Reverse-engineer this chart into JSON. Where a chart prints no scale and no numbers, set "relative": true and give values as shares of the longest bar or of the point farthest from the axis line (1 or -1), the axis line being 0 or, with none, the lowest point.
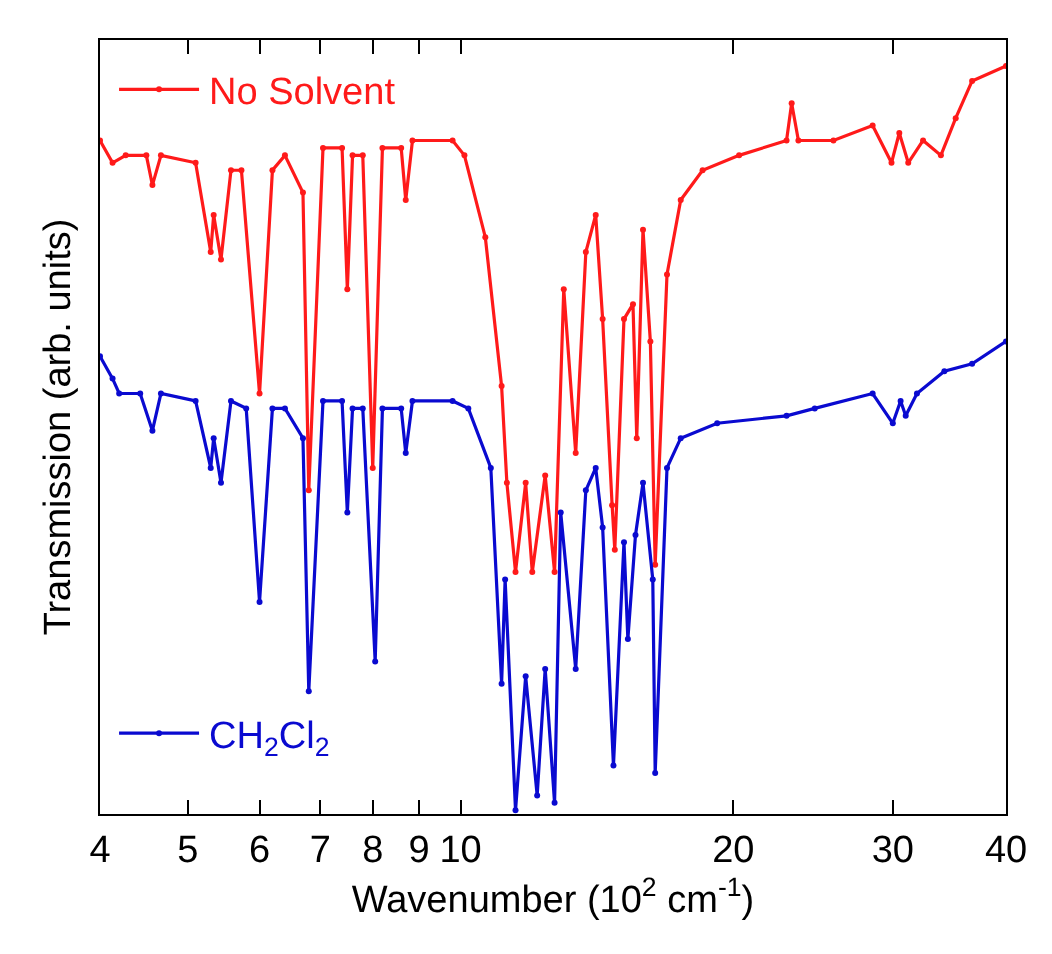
{
  "chart_data": {
    "type": "line",
    "xlabel": "Wavenumber (10$^{2}$ cm$^{-1}$)",
    "ylabel": "Transmission (arb. units)",
    "relative": true,
    "log": "x",
    "xlim": [
      4,
      40
    ],
    "xticks": [
      4,
      5,
      6,
      7,
      8,
      9,
      10,
      20,
      30,
      40
    ],
    "marker": "circle",
    "line_style": "solid",
    "legend": "left",
    "series": [
      {
        "name": "No Solvent",
        "color": "#ff1a1a",
        "x": [
          4.0,
          4.13,
          4.27,
          4.5,
          4.57,
          4.67,
          5.1,
          5.3,
          5.34,
          5.44,
          5.58,
          5.73,
          6.0,
          6.2,
          6.4,
          6.7,
          6.8,
          7.05,
          7.4,
          7.5,
          7.6,
          7.8,
          8.0,
          8.2,
          8.6,
          8.7,
          8.85,
          9.8,
          10.1,
          10.65,
          11.1,
          11.25,
          11.5,
          11.8,
          12.0,
          12.4,
          12.7,
          13.0,
          13.4,
          13.75,
          14.1,
          14.35,
          14.7,
          14.8,
          15.15,
          15.5,
          15.65,
          15.9,
          16.2,
          16.4,
          16.9,
          17.5,
          18.5,
          20.3,
          22.9,
          23.2,
          23.6,
          25.8,
          28.5,
          29.9,
          30.5,
          31.2,
          32.4,
          33.9,
          35.2,
          36.7,
          40
        ],
        "values": [
          0.9,
          0.87,
          0.88,
          0.88,
          0.84,
          0.88,
          0.87,
          0.75,
          0.8,
          0.74,
          0.86,
          0.86,
          0.56,
          0.86,
          0.88,
          0.83,
          0.43,
          0.89,
          0.89,
          0.7,
          0.88,
          0.88,
          0.46,
          0.89,
          0.89,
          0.82,
          0.9,
          0.9,
          0.88,
          0.77,
          0.57,
          0.44,
          0.32,
          0.44,
          0.32,
          0.45,
          0.32,
          0.7,
          0.48,
          0.75,
          0.8,
          0.66,
          0.41,
          0.35,
          0.66,
          0.68,
          0.5,
          0.78,
          0.63,
          0.33,
          0.72,
          0.82,
          0.86,
          0.88,
          0.9,
          0.95,
          0.9,
          0.9,
          0.92,
          0.87,
          0.91,
          0.87,
          0.9,
          0.88,
          0.93,
          0.98,
          1.0
        ]
      },
      {
        "name": "CH$_{2}$Cl$_{2}$",
        "color": "#0a0ad0",
        "x": [
          4.0,
          4.13,
          4.2,
          4.43,
          4.57,
          4.67,
          5.1,
          5.3,
          5.34,
          5.44,
          5.58,
          5.8,
          6.0,
          6.2,
          6.4,
          6.7,
          6.8,
          7.05,
          7.4,
          7.5,
          7.6,
          7.8,
          8.05,
          8.2,
          8.6,
          8.7,
          8.85,
          9.8,
          10.2,
          10.8,
          11.1,
          11.2,
          11.5,
          11.8,
          12.15,
          12.4,
          12.7,
          12.9,
          13.4,
          13.75,
          14.1,
          14.35,
          14.75,
          15.15,
          15.3,
          15.6,
          15.9,
          16.3,
          16.4,
          16.9,
          17.5,
          19.2,
          22.9,
          24.6,
          28.5,
          30.0,
          30.6,
          31.0,
          31.9,
          34.2,
          36.7,
          40
        ],
        "values": [
          0.61,
          0.58,
          0.56,
          0.56,
          0.51,
          0.56,
          0.55,
          0.46,
          0.5,
          0.44,
          0.55,
          0.54,
          0.28,
          0.54,
          0.54,
          0.5,
          0.16,
          0.55,
          0.55,
          0.4,
          0.54,
          0.54,
          0.2,
          0.54,
          0.54,
          0.48,
          0.55,
          0.55,
          0.54,
          0.46,
          0.17,
          0.31,
          0.0,
          0.18,
          0.02,
          0.19,
          0.01,
          0.4,
          0.19,
          0.43,
          0.46,
          0.38,
          0.06,
          0.36,
          0.23,
          0.37,
          0.44,
          0.31,
          0.05,
          0.46,
          0.5,
          0.52,
          0.53,
          0.54,
          0.56,
          0.52,
          0.55,
          0.53,
          0.56,
          0.59,
          0.6,
          0.63
        ]
      }
    ]
  }
}
